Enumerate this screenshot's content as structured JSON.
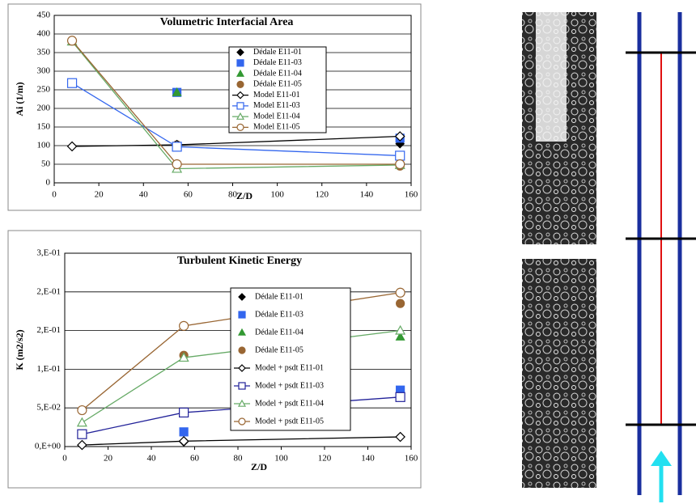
{
  "chart_data": [
    {
      "type": "line",
      "title": "Volumetric Interfacial Area",
      "x_label": "Z/D",
      "y_label": "Ai (1/m)",
      "x": [
        8,
        55,
        155
      ],
      "xlim": [
        0,
        160
      ],
      "xticks": [
        0,
        20,
        40,
        60,
        80,
        100,
        120,
        140,
        160
      ],
      "ylim": [
        0,
        450
      ],
      "yticks": [
        0,
        50,
        100,
        150,
        200,
        250,
        300,
        350,
        400,
        450
      ],
      "grid": true,
      "series": [
        {
          "name": "Dédale E11-01",
          "color": "#000000",
          "marker": "diamond",
          "filled": true,
          "line": false,
          "values": [
            98,
            100,
            105
          ]
        },
        {
          "name": "Dédale E11-03",
          "color": "#3366ee",
          "marker": "square",
          "filled": true,
          "line": false,
          "values": [
            268,
            243,
            120
          ]
        },
        {
          "name": "Dédale E11-04",
          "color": "#339933",
          "marker": "triangle",
          "filled": true,
          "line": false,
          "values": [
            380,
            243,
            48
          ]
        },
        {
          "name": "Dédale E11-05",
          "color": "#996633",
          "marker": "circle",
          "filled": true,
          "line": false,
          "values": [
            382,
            102,
            45
          ]
        },
        {
          "name": "Model E11-01",
          "color": "#000000",
          "marker": "diamond",
          "filled": false,
          "line": true,
          "values": [
            98,
            102,
            125
          ]
        },
        {
          "name": "Model E11-03",
          "color": "#3366ee",
          "marker": "square",
          "filled": false,
          "line": true,
          "values": [
            268,
            97,
            73
          ]
        },
        {
          "name": "Model E11-04",
          "color": "#66aa66",
          "marker": "triangle",
          "filled": false,
          "line": true,
          "values": [
            380,
            38,
            48
          ]
        },
        {
          "name": "Model E11-05",
          "color": "#996633",
          "marker": "circle",
          "filled": false,
          "line": true,
          "values": [
            382,
            50,
            50
          ]
        }
      ]
    },
    {
      "type": "line",
      "title": "Turbulent Kinetic Energy",
      "x_label": "Z/D",
      "y_label": "K (m2/s2)",
      "x": [
        8,
        55,
        155
      ],
      "xlim": [
        0,
        160
      ],
      "xticks": [
        0,
        20,
        40,
        60,
        80,
        100,
        120,
        140,
        160
      ],
      "ylim": [
        0,
        0.25
      ],
      "yticks": [
        {
          "value": 0,
          "label": "0,E+00"
        },
        {
          "value": 0.05,
          "label": "5,E-02"
        },
        {
          "value": 0.1,
          "label": "1,E-01"
        },
        {
          "value": 0.15,
          "label": "2,E-01"
        },
        {
          "value": 0.2,
          "label": "2,E-01"
        },
        {
          "value": 0.25,
          "label": "3,E-01"
        }
      ],
      "grid": true,
      "series": [
        {
          "name": "Dédale E11-01",
          "color": "#000000",
          "marker": "diamond",
          "filled": true,
          "line": false,
          "values": [
            0.002,
            0.006,
            0.0125
          ]
        },
        {
          "name": "Dédale E11-03",
          "color": "#3366ee",
          "marker": "square",
          "filled": true,
          "line": false,
          "values": [
            0.016,
            0.019,
            0.073
          ]
        },
        {
          "name": "Dédale E11-04",
          "color": "#339933",
          "marker": "triangle",
          "filled": true,
          "line": false,
          "values": [
            0.031,
            0.044,
            0.142
          ]
        },
        {
          "name": "Dédale E11-05",
          "color": "#996633",
          "marker": "circle",
          "filled": true,
          "line": false,
          "values": [
            0.047,
            0.118,
            0.185
          ]
        },
        {
          "name": "Model + psdt E11-01",
          "color": "#000000",
          "marker": "diamond",
          "filled": false,
          "line": true,
          "values": [
            0.002,
            0.007,
            0.0125
          ]
        },
        {
          "name": "Model + psdt E11-03",
          "color": "#222299",
          "marker": "square",
          "filled": false,
          "line": true,
          "values": [
            0.016,
            0.044,
            0.064
          ]
        },
        {
          "name": "Model + psdt E11-04",
          "color": "#66aa66",
          "marker": "triangle",
          "filled": false,
          "line": true,
          "values": [
            0.031,
            0.115,
            0.15
          ]
        },
        {
          "name": "Model + psdt E11-05",
          "color": "#996633",
          "marker": "circle",
          "filled": false,
          "line": true,
          "values": [
            0.047,
            0.156,
            0.199
          ]
        }
      ]
    }
  ]
}
